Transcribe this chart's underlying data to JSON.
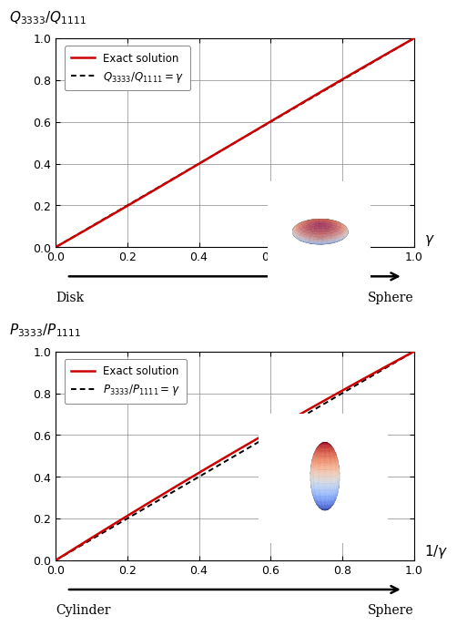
{
  "top_title": "$Q_{3333}/Q_{1111}$",
  "top_xlabel": "$\\gamma$",
  "top_legend_exact": "Exact solution",
  "top_legend_approx": "$Q_{3333}/Q_{1111} = \\gamma$",
  "top_left_label": "Disk",
  "top_right_label": "Sphere",
  "bottom_title": "$P_{3333}/P_{1111}$",
  "bottom_xlabel": "$1/\\gamma$",
  "bottom_legend_exact": "Exact solution",
  "bottom_legend_approx": "$P_{3333}/P_{1111} = \\gamma$",
  "bottom_left_label": "Cylinder",
  "bottom_right_label": "Sphere",
  "xlim": [
    0.0,
    1.0
  ],
  "ylim": [
    0.0,
    1.0
  ],
  "xticks": [
    0.0,
    0.2,
    0.4,
    0.6,
    0.8,
    1.0
  ],
  "yticks": [
    0.0,
    0.2,
    0.4,
    0.6,
    0.8,
    1.0
  ],
  "red_color": "#cc0000",
  "black_color": "#000000",
  "grid_color": "#888888",
  "bg_color": "#ffffff"
}
